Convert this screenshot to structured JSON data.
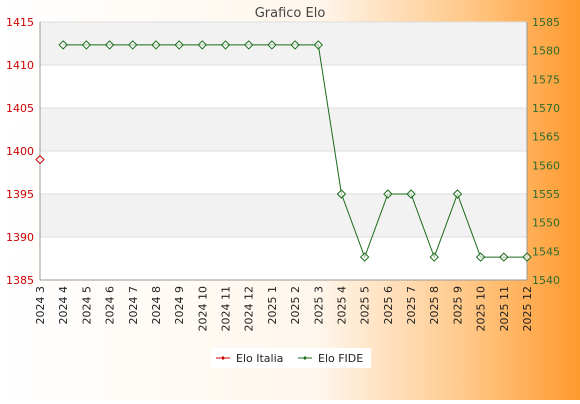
{
  "chart_data": {
    "type": "line",
    "title": "Grafico Elo",
    "categories": [
      "2024 3",
      "2024 4",
      "2024 5",
      "2024 6",
      "2024 7",
      "2024 8",
      "2024 9",
      "2024 10",
      "2024 11",
      "2024 12",
      "2025 1",
      "2025 2",
      "2025 3",
      "2025 4",
      "2025 5",
      "2025 6",
      "2025 7",
      "2025 8",
      "2025 9",
      "2025 10",
      "2025 11",
      "2025 12"
    ],
    "y_left": {
      "min": 1385,
      "max": 1415,
      "ticks": [
        1385,
        1390,
        1395,
        1400,
        1405,
        1410,
        1415
      ],
      "color": "#cc0000"
    },
    "y_right": {
      "min": 1540,
      "max": 1585,
      "ticks": [
        1540,
        1545,
        1550,
        1555,
        1560,
        1565,
        1570,
        1575,
        1580,
        1585
      ],
      "color": "#2e6b2e"
    },
    "series": [
      {
        "name": "Elo Italia",
        "axis": "left",
        "color": "#cc0000",
        "values": [
          1399,
          null,
          null,
          null,
          null,
          null,
          null,
          null,
          null,
          null,
          null,
          null,
          null,
          null,
          null,
          null,
          null,
          null,
          null,
          null,
          null,
          null
        ]
      },
      {
        "name": "Elo FIDE",
        "axis": "right",
        "color": "#1a6b1a",
        "values": [
          null,
          1581,
          1581,
          1581,
          1581,
          1581,
          1581,
          1581,
          1581,
          1581,
          1581,
          1581,
          1581,
          1555,
          1544,
          1555,
          1555,
          1544,
          1555,
          1544,
          1544,
          1544
        ]
      }
    ],
    "legend": "bottom-center",
    "grid": true
  }
}
